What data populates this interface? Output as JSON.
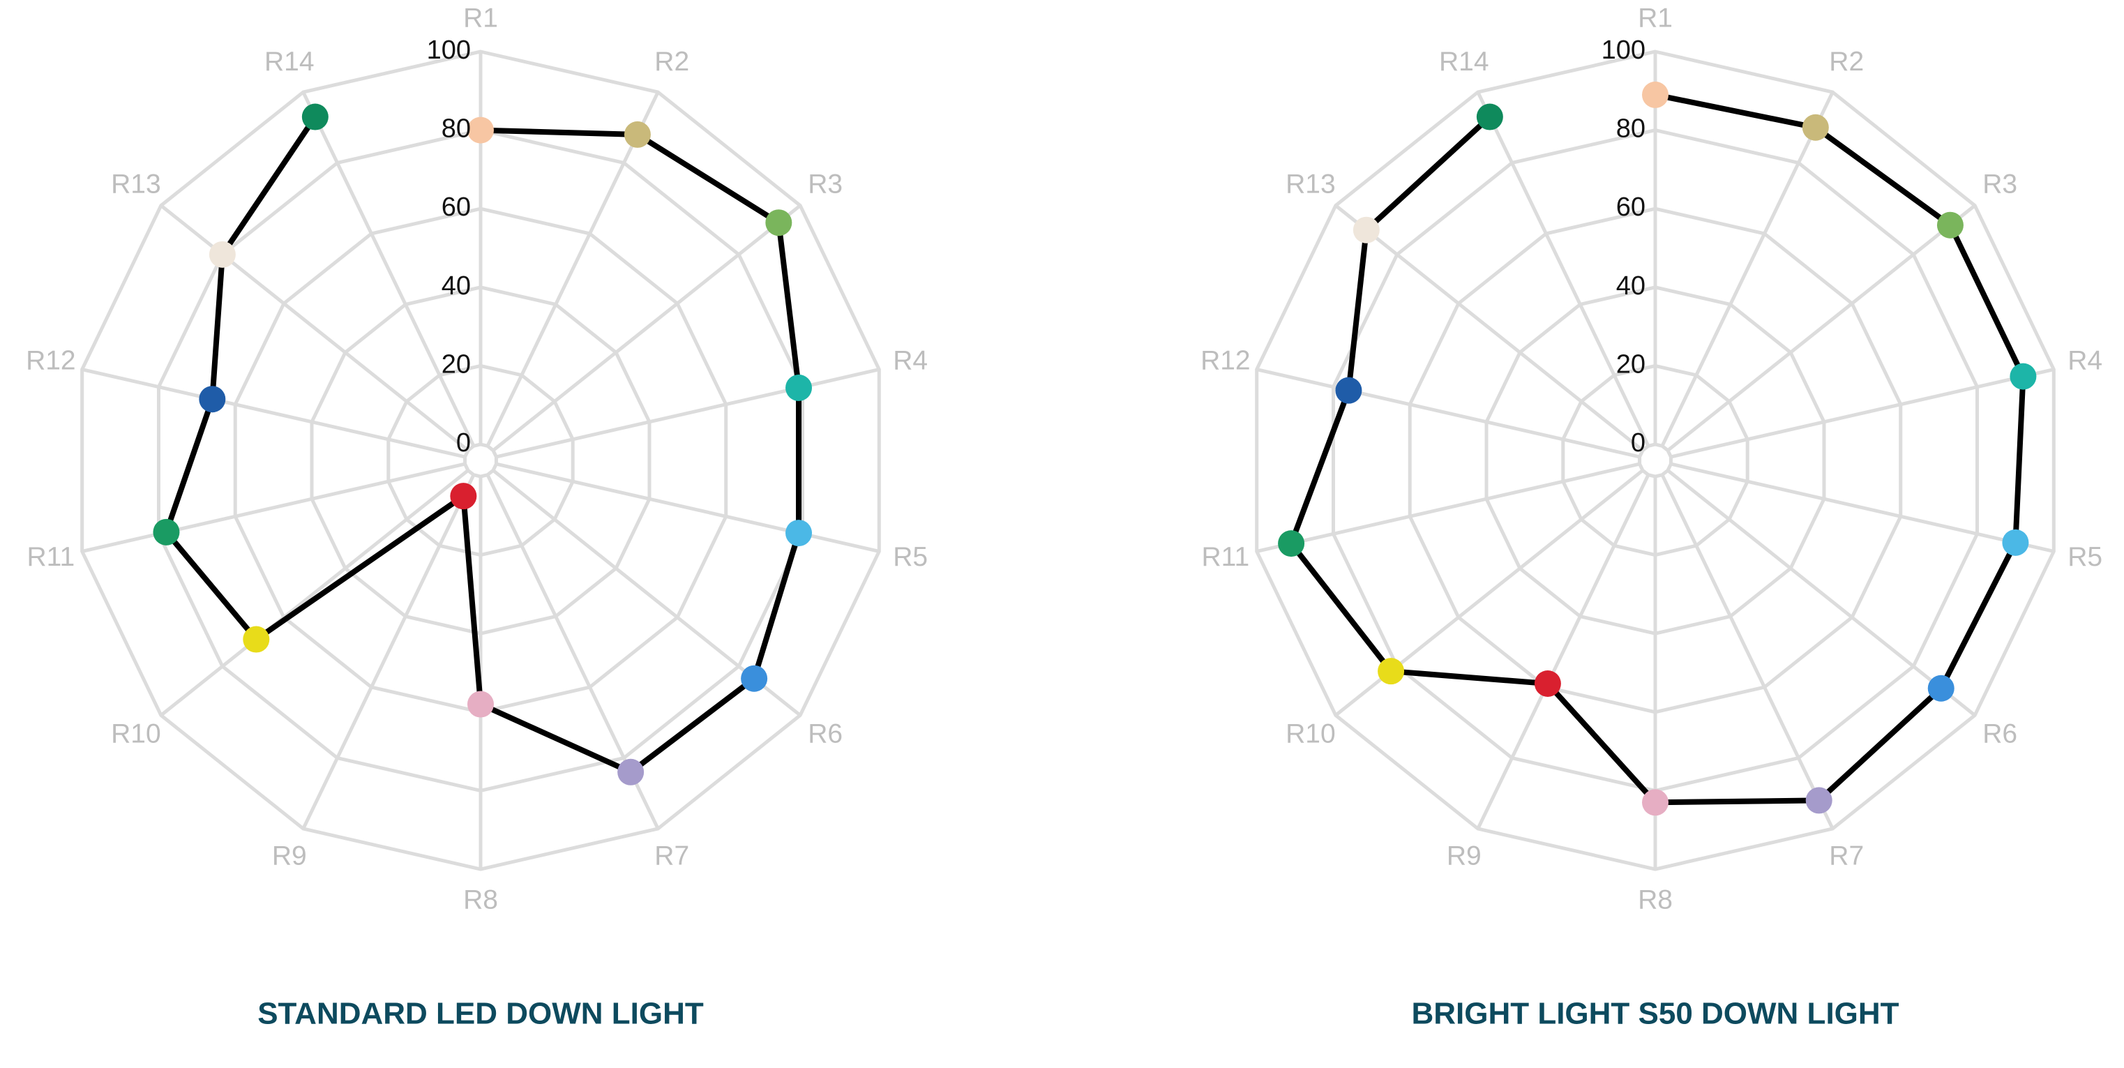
{
  "chart_data": [
    {
      "type": "radar",
      "title": "STANDARD LED DOWN LIGHT",
      "categories": [
        "R1",
        "R2",
        "R3",
        "R4",
        "R5",
        "R6",
        "R7",
        "R8",
        "R9",
        "R10",
        "R11",
        "R12",
        "R13",
        "R14"
      ],
      "values": [
        80,
        88,
        93,
        79,
        79,
        85,
        84,
        58,
        6,
        69,
        78,
        66,
        80,
        93
      ],
      "point_colors": [
        "#f7c6a3",
        "#c9b97a",
        "#7ab55c",
        "#1db5a8",
        "#4bb8e6",
        "#3a8fdc",
        "#a59bcb",
        "#e6aec3",
        "#d9202f",
        "#e8dc1a",
        "#1a9b63",
        "#1f5ca8",
        "#efe6db",
        "#0f8a5c"
      ],
      "line_color": "#000000",
      "ylim": [
        0,
        100
      ],
      "yticks": [
        0,
        20,
        40,
        60,
        80,
        100
      ],
      "grid": true
    },
    {
      "type": "radar",
      "title": "BRIGHT LIGHT S50 DOWN LIGHT",
      "categories": [
        "R1",
        "R2",
        "R3",
        "R4",
        "R5",
        "R6",
        "R7",
        "R8",
        "R9",
        "R10",
        "R11",
        "R12",
        "R13",
        "R14"
      ],
      "values": [
        89,
        90,
        92,
        92,
        90,
        89,
        92,
        83,
        59,
        82,
        91,
        76,
        90,
        93
      ],
      "point_colors": [
        "#f7c6a3",
        "#c9b97a",
        "#7ab55c",
        "#1db5a8",
        "#4bb8e6",
        "#3a8fdc",
        "#a59bcb",
        "#e6aec3",
        "#d9202f",
        "#e8dc1a",
        "#1a9b63",
        "#1f5ca8",
        "#efe6db",
        "#0f8a5c"
      ],
      "line_color": "#000000",
      "ylim": [
        0,
        100
      ],
      "yticks": [
        0,
        20,
        40,
        60,
        80,
        100
      ],
      "grid": true
    }
  ]
}
